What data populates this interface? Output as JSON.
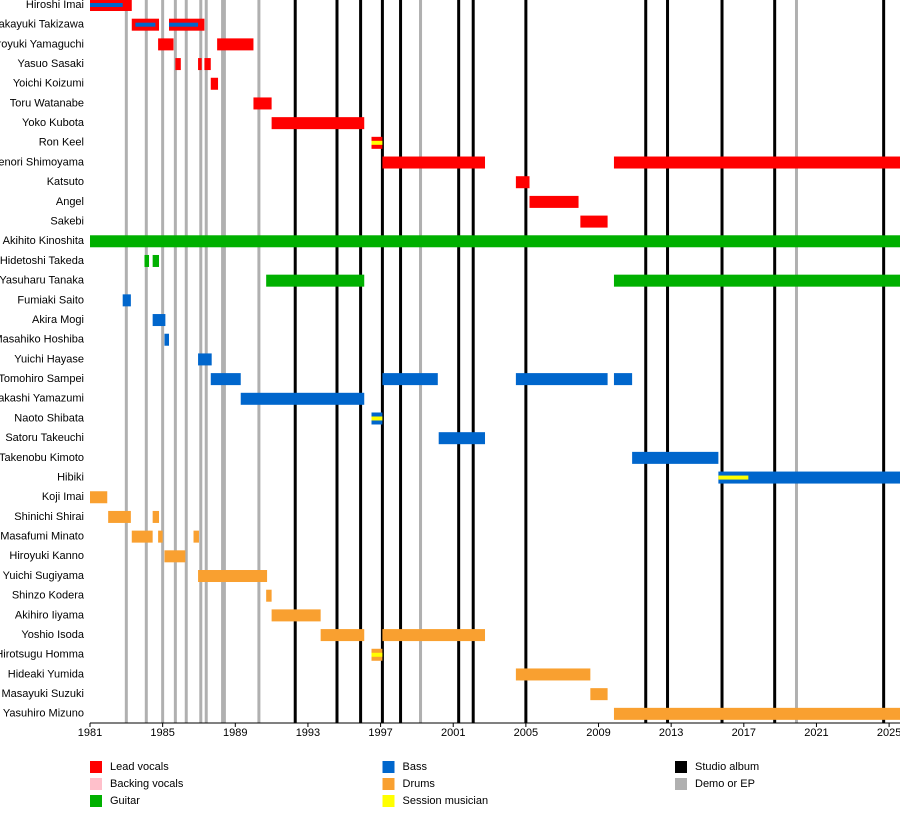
{
  "chart_data": {
    "type": "timeline",
    "xlim": [
      1981,
      2025.6
    ],
    "xticks": [
      1981,
      1985,
      1989,
      1993,
      1997,
      2001,
      2005,
      2009,
      2013,
      2017,
      2021,
      2025
    ],
    "categories": [
      "Hiroshi Imai",
      "Takayuki Takizawa",
      "Hiroyuki Yamaguchi",
      "Yasuo Sasaki",
      "Yoichi Koizumi",
      "Toru Watanabe",
      "Yoko Kubota",
      "Ron Keel",
      "Takenori Shimoyama",
      "Katsuto",
      "Angel",
      "Sakebi",
      "Akihito Kinoshita",
      "Hidetoshi Takeda",
      "Yasuharu Tanaka",
      "Fumiaki Saito",
      "Akira Mogi",
      "Masahiko Hoshiba",
      "Yuichi Hayase",
      "Tomohiro Sampei",
      "Takashi Yamazumi",
      "Naoto Shibata",
      "Satoru Takeuchi",
      "Takenobu Kimoto",
      "Hibiki",
      "Koji Imai",
      "Shinichi Shirai",
      "Masafumi Minato",
      "Hiroyuki Kanno",
      "Yuichi Sugiyama",
      "Shinzo Kodera",
      "Akihiro Iiyama",
      "Yoshio Isoda",
      "Hirotsugu Homma",
      "Hideaki Yumida",
      "Masayuki Suzuki",
      "Yasuhiro Mizuno"
    ],
    "series": [
      {
        "name": "Lead vocals",
        "color": "#ff0000",
        "values": [
          [
            [
              1981,
              1983.3
            ]
          ],
          [
            [
              1983.3,
              1984.8
            ],
            [
              1985.35,
              1987.3
            ]
          ],
          [
            [
              1984.75,
              1985.6
            ],
            [
              1988,
              1990
            ]
          ],
          [
            [
              1985.7,
              1986
            ],
            [
              1986.95,
              1987.15
            ],
            [
              1987.3,
              1987.65
            ]
          ],
          [
            [
              1987.65,
              1988.05
            ]
          ],
          [
            [
              1990,
              1991
            ]
          ],
          [
            [
              1991,
              1996.1
            ]
          ],
          [
            [
              1996.5,
              1997.1
            ]
          ],
          [
            [
              1997.1,
              2002.75
            ],
            [
              2009.85,
              2025.6
            ]
          ],
          [
            [
              2004.45,
              2005.2
            ]
          ],
          [
            [
              2005.2,
              2007.9
            ]
          ],
          [
            [
              2008,
              2009.5
            ]
          ],
          [],
          [],
          [],
          [],
          [],
          [],
          [],
          [],
          [],
          [],
          [],
          [],
          [],
          [],
          [],
          [],
          [],
          [],
          [],
          [],
          [],
          [],
          [],
          [],
          []
        ]
      },
      {
        "name": "Backing vocals",
        "color": "#ffc0cb"
      },
      {
        "name": "Guitar",
        "color": "#00b000",
        "values": [
          [],
          [],
          [],
          [],
          [],
          [],
          [],
          [],
          [],
          [],
          [],
          [],
          [
            [
              1981,
              2025.6
            ]
          ],
          [
            [
              1984,
              1984.25
            ],
            [
              1984.45,
              1984.8
            ]
          ],
          [
            [
              1990.7,
              1996.1
            ],
            [
              2009.85,
              2025.6
            ]
          ],
          [],
          [],
          [],
          [],
          [],
          [],
          [],
          [],
          [],
          [],
          [],
          [],
          [],
          [],
          [],
          [],
          [],
          [],
          [],
          [],
          [],
          []
        ]
      },
      {
        "name": "Bass",
        "color": "#0066cc",
        "values": [
          [],
          [],
          [],
          [],
          [],
          [],
          [],
          [],
          [],
          [],
          [],
          [],
          [],
          [],
          [],
          [
            [
              1982.8,
              1983.25
            ]
          ],
          [
            [
              1984.45,
              1985.15
            ]
          ],
          [
            [
              1985.1,
              1985.35
            ]
          ],
          [
            [
              1986.95,
              1987.7
            ]
          ],
          [
            [
              1987.65,
              1989.3
            ],
            [
              1997.1,
              2000.15
            ],
            [
              2004.45,
              2009.5
            ],
            [
              2009.85,
              2010.85
            ]
          ],
          [
            [
              1989.3,
              1996.1
            ]
          ],
          [
            [
              1996.5,
              1997.1
            ]
          ],
          [
            [
              2000.2,
              2002.75
            ]
          ],
          [
            [
              2010.85,
              2015.6
            ]
          ],
          [
            [
              2015.6,
              2025.6
            ]
          ],
          [],
          [],
          [],
          [],
          [],
          [],
          [],
          [],
          [],
          [],
          [],
          []
        ],
        "stripes": [
          [
            [
              1981,
              1982.8
            ]
          ],
          [
            [
              1983.5,
              1984.6
            ],
            [
              1985.35,
              1986.95
            ]
          ],
          [],
          [],
          [],
          [],
          [],
          [],
          [],
          [],
          [],
          [],
          [],
          [],
          [],
          [],
          [],
          [],
          [],
          [],
          [],
          [],
          [],
          [],
          [],
          [],
          [],
          [],
          [],
          [],
          [],
          [],
          [],
          [],
          [],
          [],
          []
        ]
      },
      {
        "name": "Drums",
        "color": "#f9a030",
        "values": [
          [],
          [],
          [],
          [],
          [],
          [],
          [],
          [],
          [],
          [],
          [],
          [],
          [],
          [],
          [],
          [],
          [],
          [],
          [],
          [],
          [],
          [],
          [],
          [],
          [],
          [
            [
              1981,
              1981.95
            ]
          ],
          [
            [
              1982,
              1983.25
            ],
            [
              1984.45,
              1984.8
            ]
          ],
          [
            [
              1983.3,
              1984.45
            ],
            [
              1984.75,
              1985
            ],
            [
              1986.7,
              1987
            ]
          ],
          [
            [
              1985.1,
              1986.25
            ]
          ],
          [
            [
              1986.95,
              1990.75
            ]
          ],
          [
            [
              1990.7,
              1991
            ]
          ],
          [
            [
              1991,
              1993.7
            ]
          ],
          [
            [
              1993.7,
              1996.1
            ],
            [
              1997.1,
              2002.75
            ]
          ],
          [
            [
              1996.5,
              1997.1
            ]
          ],
          [
            [
              2004.45,
              2008.55
            ]
          ],
          [
            [
              2008.55,
              2009.5
            ]
          ],
          [
            [
              2009.85,
              2025.6
            ]
          ]
        ]
      },
      {
        "name": "Session musician",
        "color": "#ffff00",
        "stripes": [
          [],
          [],
          [],
          [],
          [],
          [],
          [],
          [
            [
              1996.5,
              1997.1
            ]
          ],
          [],
          [],
          [],
          [],
          [],
          [],
          [],
          [],
          [],
          [],
          [],
          [],
          [],
          [
            [
              1996.5,
              1997.1
            ]
          ],
          [],
          [],
          [
            [
              2015.6,
              2017.25
            ]
          ],
          [],
          [],
          [],
          [],
          [],
          [],
          [],
          [],
          [
            [
              1996.5,
              1997.1
            ]
          ],
          [],
          [],
          []
        ]
      }
    ],
    "markers": [
      {
        "name": "Studio album",
        "color": "#000000",
        "x": [
          1992.3,
          1994.6,
          1995.9,
          1997.1,
          1998.1,
          2001.3,
          2002.1,
          2005.0,
          2011.6,
          2012.8,
          2015.8,
          2018.7,
          2024.7
        ]
      },
      {
        "name": "Demo or EP",
        "color": "#b0b0b0",
        "x": [
          1983.0,
          1984.1,
          1985.0,
          1985.7,
          1986.3,
          1987.1,
          1987.4,
          1988.3,
          1988.4,
          1990.3,
          1999.2,
          2019.9
        ]
      }
    ]
  }
}
